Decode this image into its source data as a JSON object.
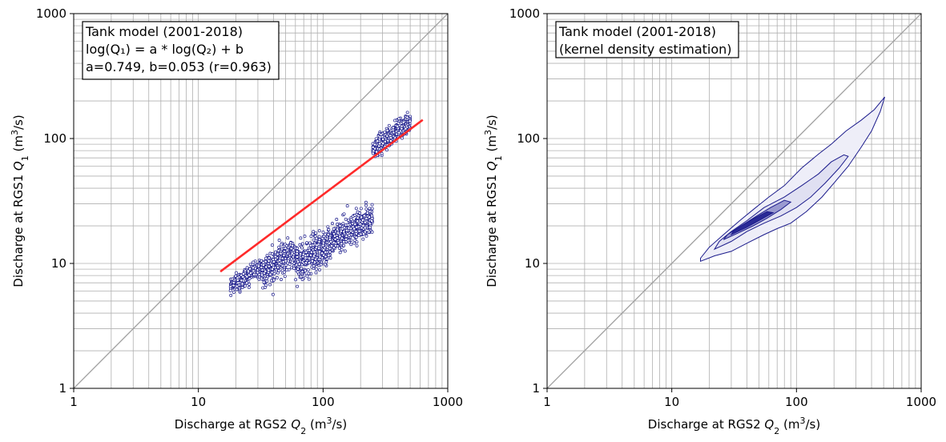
{
  "chart_data": [
    {
      "type": "scatter",
      "scale": "log-log",
      "xlim": [
        1,
        1000
      ],
      "ylim": [
        1,
        1000
      ],
      "grid": true,
      "x_ticks": [
        "1",
        "10",
        "100",
        "1000"
      ],
      "y_ticks": [
        "1",
        "10",
        "100",
        "1000"
      ],
      "xlabel": {
        "pre": "Discharge at RGS2 ",
        "var": "Q",
        "sub": "2",
        "unit_pre": " (m",
        "sup": "3",
        "unit_post": "/s)"
      },
      "ylabel": {
        "pre": "Discharge at RGS1 ",
        "var": "Q",
        "sub": "1",
        "unit_pre": " (m",
        "sup": "3",
        "unit_post": "/s)"
      },
      "annotation": {
        "line1": "Tank model (2001-2018)",
        "line2": "log(Q₁) = a * log(Q₂) + b",
        "line3": "a=0.749, b=0.053 (r=0.963)"
      },
      "identity_line": {
        "x": [
          1,
          1000
        ],
        "y": [
          1,
          1000
        ],
        "color": "#a0a0a0"
      },
      "fit_line": {
        "x": [
          15,
          630
        ],
        "y": [
          8.6,
          141
        ],
        "color": "#ff2a2a",
        "a": 0.749,
        "b": 0.053
      },
      "scatter_color": "#1c1c8c",
      "scatter_segments": [
        {
          "x0": 18,
          "x1": 32,
          "c": 0.62,
          "s": 0.05
        },
        {
          "x0": 32,
          "x1": 60,
          "c": 0.6,
          "s": 0.09
        },
        {
          "x0": 60,
          "x1": 110,
          "c": 0.55,
          "s": 0.12
        },
        {
          "x0": 110,
          "x1": 250,
          "c": 0.56,
          "s": 0.09
        },
        {
          "x0": 250,
          "x1": 500,
          "c": 0.78,
          "s": 0.06
        }
      ]
    },
    {
      "type": "contour",
      "scale": "log-log",
      "xlim": [
        1,
        1000
      ],
      "ylim": [
        1,
        1000
      ],
      "grid": true,
      "x_ticks": [
        "1",
        "10",
        "100",
        "1000"
      ],
      "y_ticks": [
        "1",
        "10",
        "100",
        "1000"
      ],
      "xlabel": {
        "pre": "Discharge at RGS2 ",
        "var": "Q",
        "sub": "2",
        "unit_pre": " (m",
        "sup": "3",
        "unit_post": "/s)"
      },
      "ylabel": {
        "pre": "Discharge at RGS1 ",
        "var": "Q",
        "sub": "1",
        "unit_pre": " (m",
        "sup": "3",
        "unit_post": "/s)"
      },
      "annotation": {
        "line1": "Tank model (2001-2018)",
        "line2": "(kernel density estimation)"
      },
      "identity_line": {
        "x": [
          1,
          1000
        ],
        "y": [
          1,
          1000
        ],
        "color": "#a0a0a0"
      },
      "contour_color": "#1c1c8c",
      "contours": [
        {
          "level": 1,
          "fill": "#eeeef8",
          "points": [
            [
              17,
              10.4
            ],
            [
              22,
              11.5
            ],
            [
              30,
              12.5
            ],
            [
              40,
              14.5
            ],
            [
              55,
              17
            ],
            [
              70,
              19
            ],
            [
              90,
              21
            ],
            [
              120,
              26
            ],
            [
              160,
              34
            ],
            [
              200,
              44
            ],
            [
              260,
              60
            ],
            [
              330,
              85
            ],
            [
              400,
              115
            ],
            [
              470,
              165
            ],
            [
              510,
              215
            ],
            [
              490,
              205
            ],
            [
              420,
              170
            ],
            [
              330,
              140
            ],
            [
              250,
              115
            ],
            [
              190,
              90
            ],
            [
              150,
              75
            ],
            [
              110,
              58
            ],
            [
              80,
              42
            ],
            [
              60,
              34
            ],
            [
              45,
              27
            ],
            [
              35,
              22
            ],
            [
              26,
              17
            ],
            [
              20,
              13.5
            ],
            [
              17,
              11
            ]
          ]
        },
        {
          "level": 2,
          "fill": "#e0e0f2",
          "points": [
            [
              22,
              13
            ],
            [
              30,
              15
            ],
            [
              40,
              18
            ],
            [
              55,
              21
            ],
            [
              75,
              24
            ],
            [
              100,
              28
            ],
            [
              130,
              34
            ],
            [
              170,
              44
            ],
            [
              220,
              58
            ],
            [
              260,
              72
            ],
            [
              240,
              74
            ],
            [
              190,
              65
            ],
            [
              150,
              52
            ],
            [
              110,
              42
            ],
            [
              80,
              34
            ],
            [
              55,
              28
            ],
            [
              40,
              22
            ],
            [
              30,
              18
            ],
            [
              24,
              15
            ]
          ]
        },
        {
          "level": 3,
          "fill": "#9a9ad0",
          "points": [
            [
              26,
              15.5
            ],
            [
              34,
              17.5
            ],
            [
              45,
              20
            ],
            [
              58,
              23
            ],
            [
              75,
              27
            ],
            [
              90,
              31
            ],
            [
              80,
              32
            ],
            [
              62,
              28
            ],
            [
              48,
              24
            ],
            [
              36,
              20
            ],
            [
              28,
              17
            ]
          ]
        },
        {
          "level": 4,
          "fill": "#2a2a96",
          "points": [
            [
              30,
              17
            ],
            [
              40,
              19.5
            ],
            [
              52,
              22.5
            ],
            [
              65,
              25.5
            ],
            [
              58,
              26
            ],
            [
              46,
              23
            ],
            [
              36,
              20
            ],
            [
              31,
              18
            ]
          ]
        }
      ]
    }
  ]
}
